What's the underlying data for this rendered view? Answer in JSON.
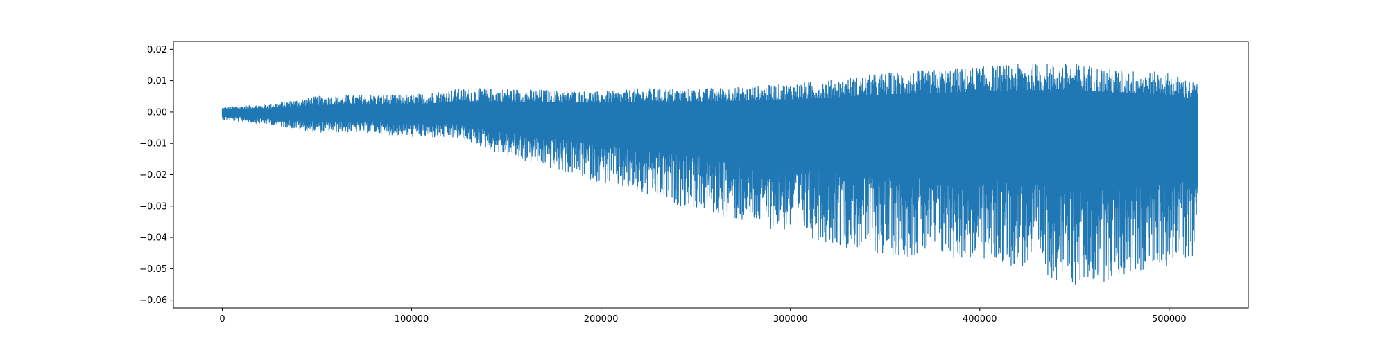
{
  "chart_data": {
    "type": "line",
    "title": "",
    "xlabel": "",
    "ylabel": "",
    "xlim": [
      -25800,
      541800
    ],
    "ylim": [
      -0.0625,
      0.0225
    ],
    "x_ticks": [
      0,
      100000,
      200000,
      300000,
      400000,
      500000
    ],
    "x_tick_labels": [
      "0",
      "100000",
      "200000",
      "300000",
      "400000",
      "500000"
    ],
    "y_ticks": [
      0.02,
      0.01,
      0.0,
      -0.01,
      -0.02,
      -0.03,
      -0.04,
      -0.05,
      -0.06
    ],
    "y_tick_labels": [
      "0.02",
      "0.01",
      "0.00",
      "−0.01",
      "−0.02",
      "−0.03",
      "−0.04",
      "−0.05",
      "−0.06"
    ],
    "grid": false,
    "legend": "none",
    "series": [
      {
        "color": "#1f77b4",
        "sample_count": 516000,
        "envelope": {
          "x": [
            0,
            25000,
            50000,
            75000,
            100000,
            125000,
            150000,
            175000,
            200000,
            225000,
            250000,
            275000,
            300000,
            325000,
            350000,
            375000,
            400000,
            425000,
            450000,
            475000,
            500000,
            515000
          ],
          "upper": [
            0.0015,
            0.0025,
            0.005,
            0.0055,
            0.0055,
            0.0075,
            0.0075,
            0.007,
            0.0065,
            0.0075,
            0.0075,
            0.008,
            0.009,
            0.0105,
            0.0125,
            0.0135,
            0.0145,
            0.0155,
            0.0155,
            0.0135,
            0.0125,
            0.009
          ],
          "lower": [
            -0.0025,
            -0.004,
            -0.0065,
            -0.0065,
            -0.008,
            -0.0085,
            -0.014,
            -0.0185,
            -0.0225,
            -0.0275,
            -0.031,
            -0.0355,
            -0.0385,
            -0.0425,
            -0.046,
            -0.0465,
            -0.0475,
            -0.05,
            -0.056,
            -0.053,
            -0.049,
            -0.046
          ]
        }
      }
    ]
  }
}
